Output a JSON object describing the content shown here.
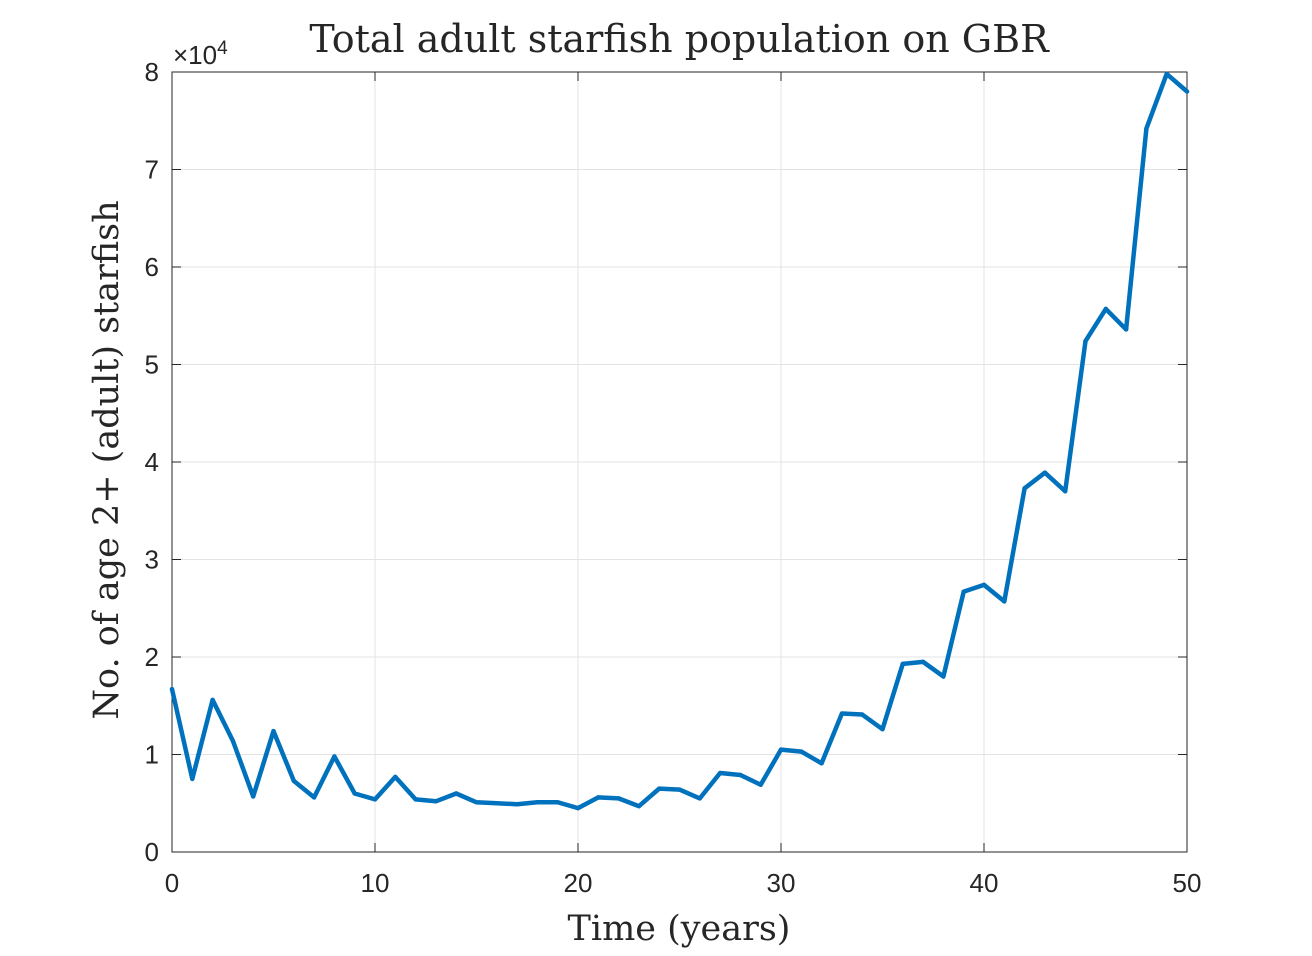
{
  "chart_data": {
    "type": "line",
    "title": "Total adult starfish population on GBR",
    "xlabel": "Time (years)",
    "ylabel": "No. of age 2+ (adult) starfish",
    "y_exponent_label": "×10",
    "y_exponent_power": "4",
    "xlim": [
      0,
      50
    ],
    "ylim": [
      0,
      80000
    ],
    "x_ticks": [
      0,
      10,
      20,
      30,
      40,
      50
    ],
    "y_ticks": [
      0,
      10000,
      20000,
      30000,
      40000,
      50000,
      60000,
      70000,
      80000
    ],
    "x_tick_labels": [
      "0",
      "10",
      "20",
      "30",
      "40",
      "50"
    ],
    "y_tick_labels": [
      "0",
      "1",
      "2",
      "3",
      "4",
      "5",
      "6",
      "7",
      "8"
    ],
    "grid": true,
    "series": [
      {
        "color": "#0072BD",
        "x": [
          0,
          1,
          2,
          3,
          4,
          5,
          6,
          7,
          8,
          9,
          10,
          11,
          12,
          13,
          14,
          15,
          16,
          17,
          18,
          19,
          20,
          21,
          22,
          23,
          24,
          25,
          26,
          27,
          28,
          29,
          30,
          31,
          32,
          33,
          34,
          35,
          36,
          37,
          38,
          39,
          40,
          41,
          42,
          43,
          44,
          45,
          46,
          47,
          48,
          49,
          50
        ],
        "y": [
          16700,
          7500,
          15600,
          11400,
          5700,
          12400,
          7300,
          5600,
          9800,
          6000,
          5400,
          7700,
          5400,
          5200,
          6000,
          5100,
          5000,
          4900,
          5100,
          5100,
          4500,
          5600,
          5500,
          4700,
          6500,
          6400,
          5500,
          8100,
          7900,
          6900,
          10500,
          10300,
          9100,
          14200,
          14100,
          12600,
          19300,
          19500,
          18000,
          26700,
          27400,
          25700,
          37300,
          38900,
          37000,
          52400,
          55700,
          53600,
          74200,
          79800,
          78000
        ]
      }
    ]
  }
}
